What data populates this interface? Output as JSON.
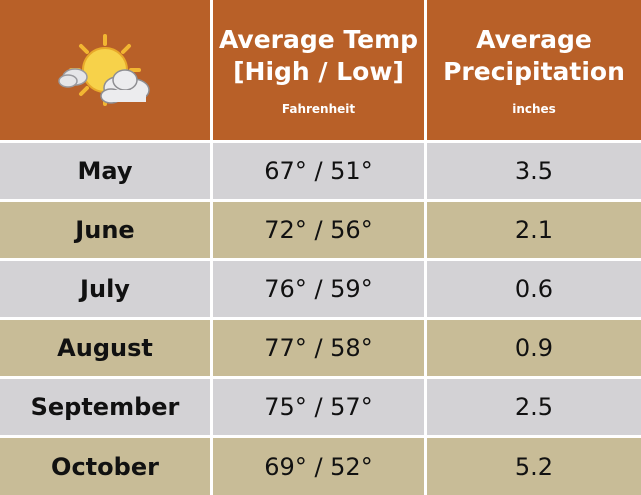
{
  "header": {
    "icon": "partly-sunny-icon",
    "temp_title": "Average Temp\n[High / Low]",
    "temp_unit": "Fahrenheit",
    "precip_title": "Average\nPrecipitation",
    "precip_unit": "inches"
  },
  "rows": [
    {
      "month": "May",
      "temp": "67° / 51°",
      "precip": "3.5"
    },
    {
      "month": "June",
      "temp": "72° / 56°",
      "precip": "2.1"
    },
    {
      "month": "July",
      "temp": "76° / 59°",
      "precip": "0.6"
    },
    {
      "month": "August",
      "temp": "77° / 58°",
      "precip": "0.9"
    },
    {
      "month": "September",
      "temp": "75° / 57°",
      "precip": "2.5"
    },
    {
      "month": "October",
      "temp": "69° / 52°",
      "precip": "5.2"
    }
  ],
  "colors": {
    "header_bg": "#B86028",
    "row_gray": "#D3D2D5",
    "row_tan": "#C8BC97"
  }
}
